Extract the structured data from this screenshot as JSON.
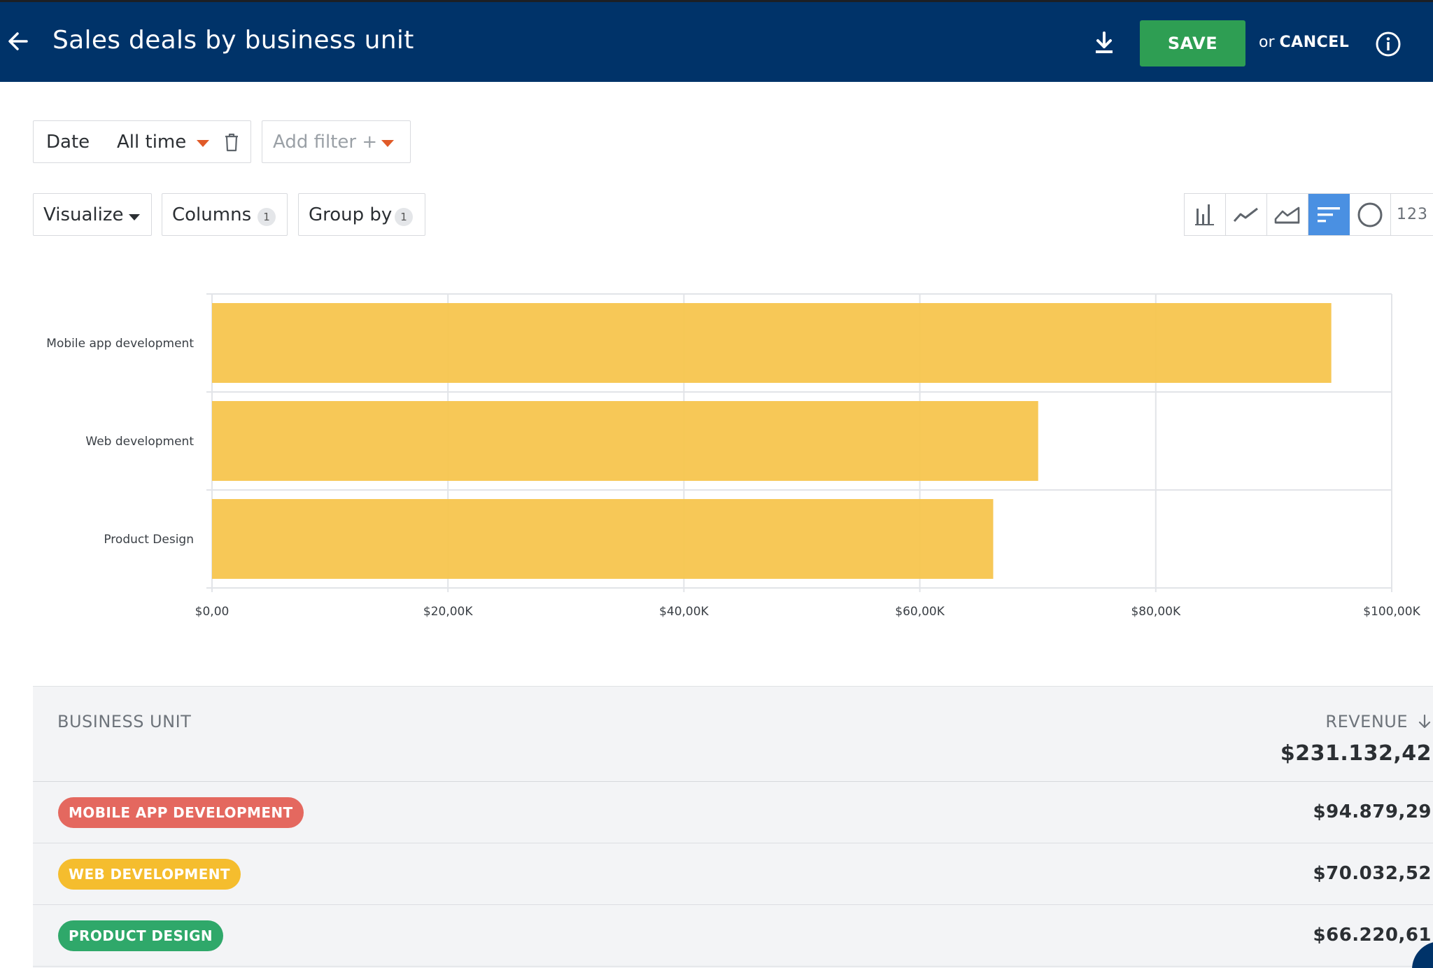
{
  "header": {
    "title": "Sales deals by business unit",
    "save_label": "SAVE",
    "or_label": "or",
    "cancel_label": "CANCEL"
  },
  "filters": {
    "date_label": "Date",
    "date_value": "All time",
    "add_filter_label": "Add filter +"
  },
  "controls": {
    "visualize_label": "Visualize",
    "columns_label": "Columns",
    "columns_count": "1",
    "group_by_label": "Group by",
    "group_by_count": "1",
    "chart_types": [
      "bar",
      "line",
      "area",
      "horizontal-bar",
      "pie",
      "number"
    ],
    "chart_type_active": "horizontal-bar",
    "number_type_label": "123"
  },
  "colors": {
    "header_bg": "#003369",
    "save_green": "#2e9e53",
    "bar_yellow": "#f7c54e",
    "active_blue": "#4a90e2",
    "pill_red": "#e4685f",
    "pill_yellow": "#f5bd2e",
    "pill_green": "#2fa86a"
  },
  "chart_data": {
    "type": "bar",
    "orientation": "horizontal",
    "categories": [
      "Mobile app development",
      "Web development",
      "Product Design"
    ],
    "values": [
      94879.29,
      70032.52,
      66220.61
    ],
    "xlim": [
      0,
      100000
    ],
    "x_ticks": [
      0,
      20000,
      40000,
      60000,
      80000,
      100000
    ],
    "x_tick_labels": [
      "$0,00",
      "$20,00K",
      "$40,00K",
      "$60,00K",
      "$80,00K",
      "$100,00K"
    ],
    "grid": true,
    "bar_color": "#f7c54e"
  },
  "table": {
    "col_unit": "BUSINESS UNIT",
    "col_revenue": "REVENUE",
    "total": "$231.132,42",
    "rows": [
      {
        "unit": "MOBILE APP DEVELOPMENT",
        "revenue": "$94.879,29",
        "color": "#e4685f"
      },
      {
        "unit": "WEB DEVELOPMENT",
        "revenue": "$70.032,52",
        "color": "#f5bd2e"
      },
      {
        "unit": "PRODUCT DESIGN",
        "revenue": "$66.220,61",
        "color": "#2fa86a"
      }
    ]
  }
}
